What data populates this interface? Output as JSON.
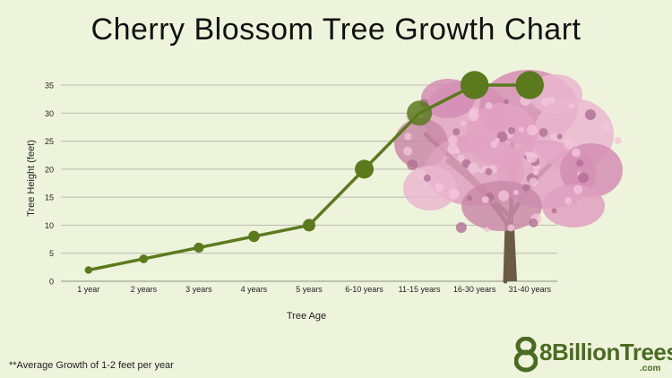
{
  "title": "Cherry Blossom Tree Growth Chart",
  "footnote": "**Average Growth of 1-2 feet per year",
  "brand": {
    "name": "8BillionTrees",
    "suffix": ".com",
    "logo_icon": "number-eight-tree-icon"
  },
  "colors": {
    "line": "#5b7a1e",
    "background": "#eef3dc",
    "grid": "#b9bcae",
    "blossom": "#e8a6c6"
  },
  "chart_data": {
    "type": "line",
    "categories": [
      "1 year",
      "2 years",
      "3 years",
      "4 years",
      "5 years",
      "6-10 years",
      "11-15 years",
      "16-30 years",
      "31-40 years"
    ],
    "series": [
      {
        "values": [
          2,
          4,
          6,
          8,
          10,
          20,
          30,
          35,
          35
        ]
      }
    ],
    "xlabel": "Tree Age",
    "ylabel": "Tree Height (feet)",
    "ylim": [
      0,
      35
    ],
    "yticks": [
      0,
      5,
      10,
      15,
      20,
      25,
      30,
      35
    ],
    "grid": true,
    "marker": "circle sized by value",
    "illustration": "cherry-blossom-tree"
  }
}
